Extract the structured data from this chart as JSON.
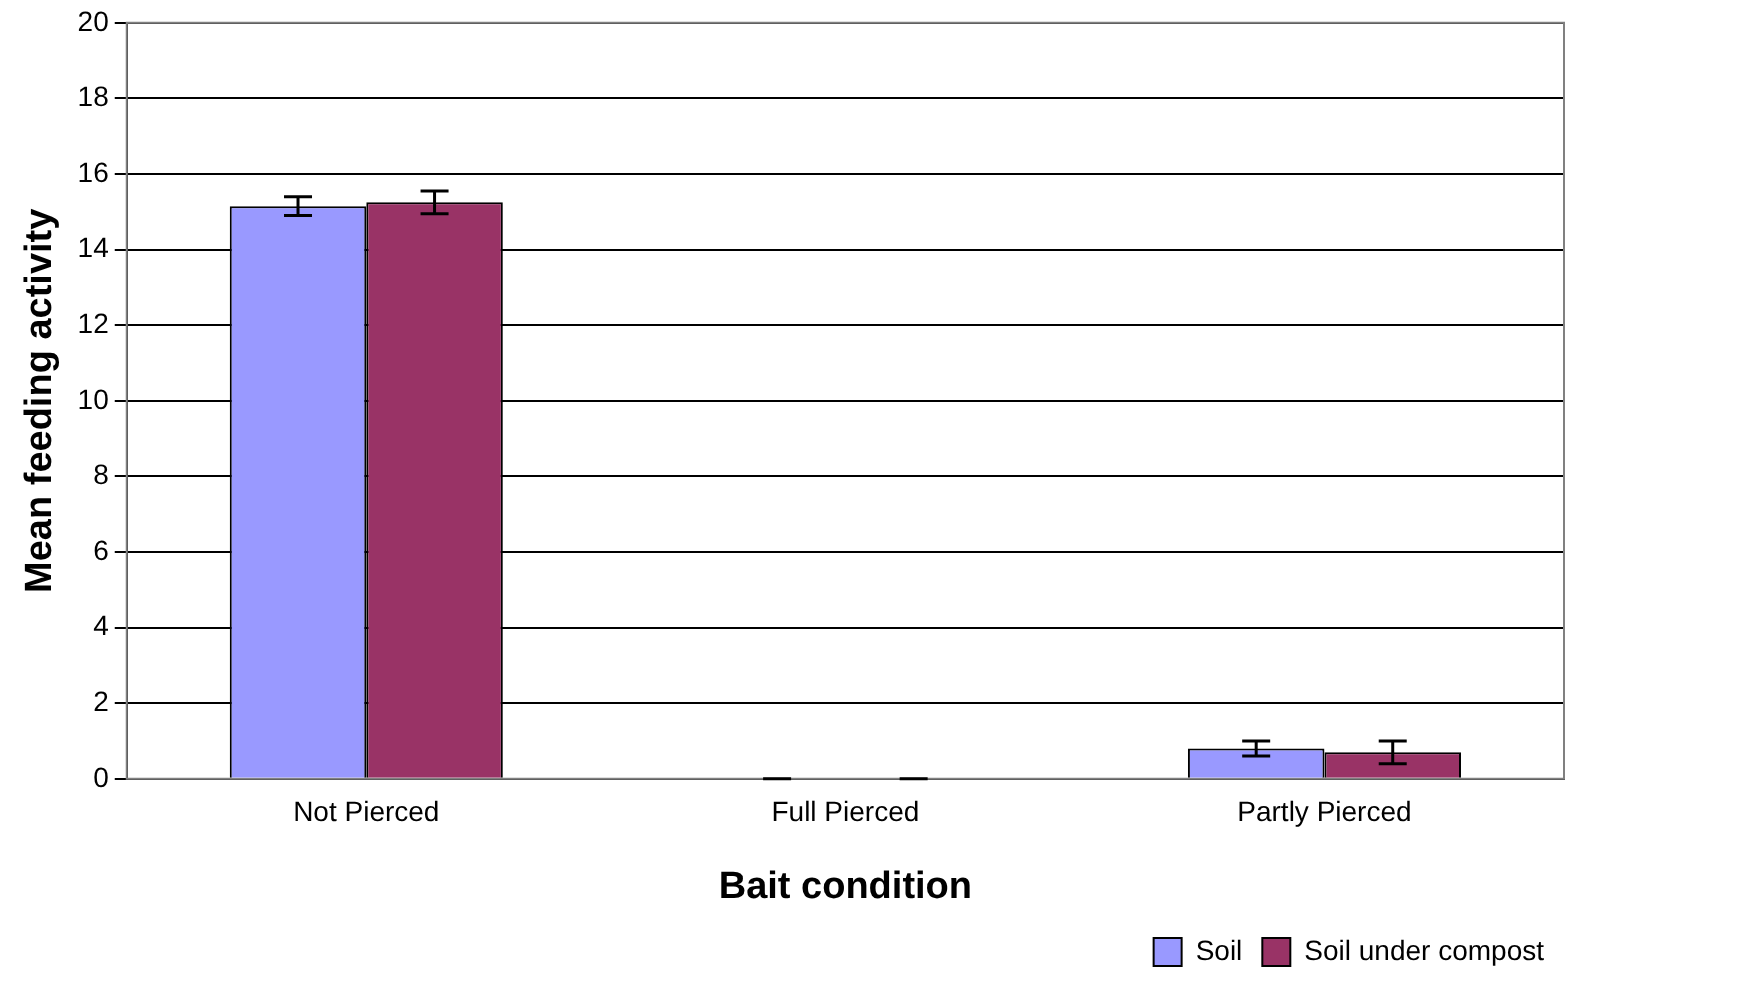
{
  "chart_data": {
    "type": "bar",
    "xlabel": "Bait condition",
    "ylabel": "Mean feeding activity",
    "categories": [
      "Not Pierced",
      "Full Pierced",
      "Partly Pierced"
    ],
    "series": [
      {
        "name": "Soil",
        "color": "#9999ff",
        "values": [
          15.15,
          0,
          0.8
        ],
        "errors": [
          0.25,
          0,
          0.2
        ]
      },
      {
        "name": "Soil under compost",
        "color": "#993366",
        "values": [
          15.25,
          0,
          0.7
        ],
        "errors": [
          0.3,
          0,
          0.3
        ]
      }
    ],
    "ylim": [
      0,
      20
    ],
    "yticks": [
      0,
      2,
      4,
      6,
      8,
      10,
      12,
      14,
      16,
      18,
      20
    ],
    "grid": "y",
    "legend": "bottom right"
  }
}
